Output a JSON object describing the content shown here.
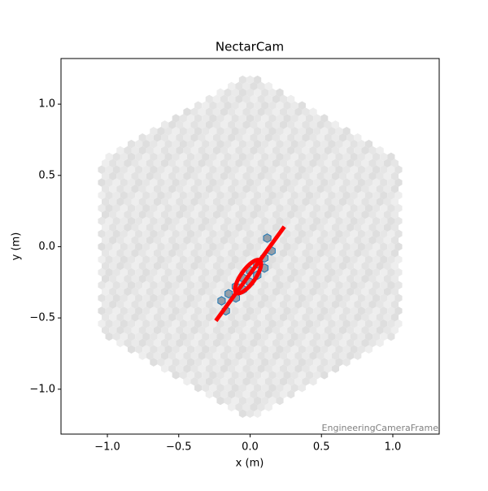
{
  "chart_data": {
    "type": "camera",
    "title": "NectarCam",
    "x_label": "x  (m)",
    "y_label": "y  (m)",
    "annotation": "EngineeringCameraFrame",
    "xlim": [
      -1.325,
      1.325
    ],
    "ylim": [
      -1.315,
      1.32
    ],
    "xticks": [
      {
        "value": -1,
        "label": "−1.0"
      },
      {
        "value": -0.5,
        "label": "−0.5"
      },
      {
        "value": 0,
        "label": "0.0"
      },
      {
        "value": 0.5,
        "label": "0.5"
      },
      {
        "value": 1,
        "label": "1.0"
      }
    ],
    "yticks": [
      {
        "value": -1,
        "label": "−1.0"
      },
      {
        "value": -0.5,
        "label": "−0.5"
      },
      {
        "value": 0,
        "label": "0.0"
      },
      {
        "value": 0.5,
        "label": "0.5"
      },
      {
        "value": 1,
        "label": "1.0"
      }
    ],
    "series": [
      {
        "color": "#1f77b4",
        "x": [
          -0.2,
          -0.17,
          -0.15,
          -0.1,
          -0.1,
          -0.05,
          -0.05,
          0,
          0,
          0.05,
          0.05,
          0.1,
          0.1,
          0.15,
          0.12
        ],
        "y": [
          -0.38,
          -0.45,
          -0.33,
          -0.28,
          -0.36,
          -0.22,
          -0.3,
          -0.17,
          -0.25,
          -0.12,
          -0.2,
          -0.08,
          -0.15,
          -0.03,
          0.06
        ]
      }
    ],
    "hillas": {
      "center_x": -0.014,
      "center_y": -0.21,
      "length": 0.14,
      "width": 0.05,
      "psi_deg": 54.4,
      "color": "#ff0000"
    },
    "axis_line": {
      "x": [
        -0.24,
        0.24
      ],
      "y": [
        -0.52,
        0.14
      ],
      "color": "#ff0000"
    }
  }
}
